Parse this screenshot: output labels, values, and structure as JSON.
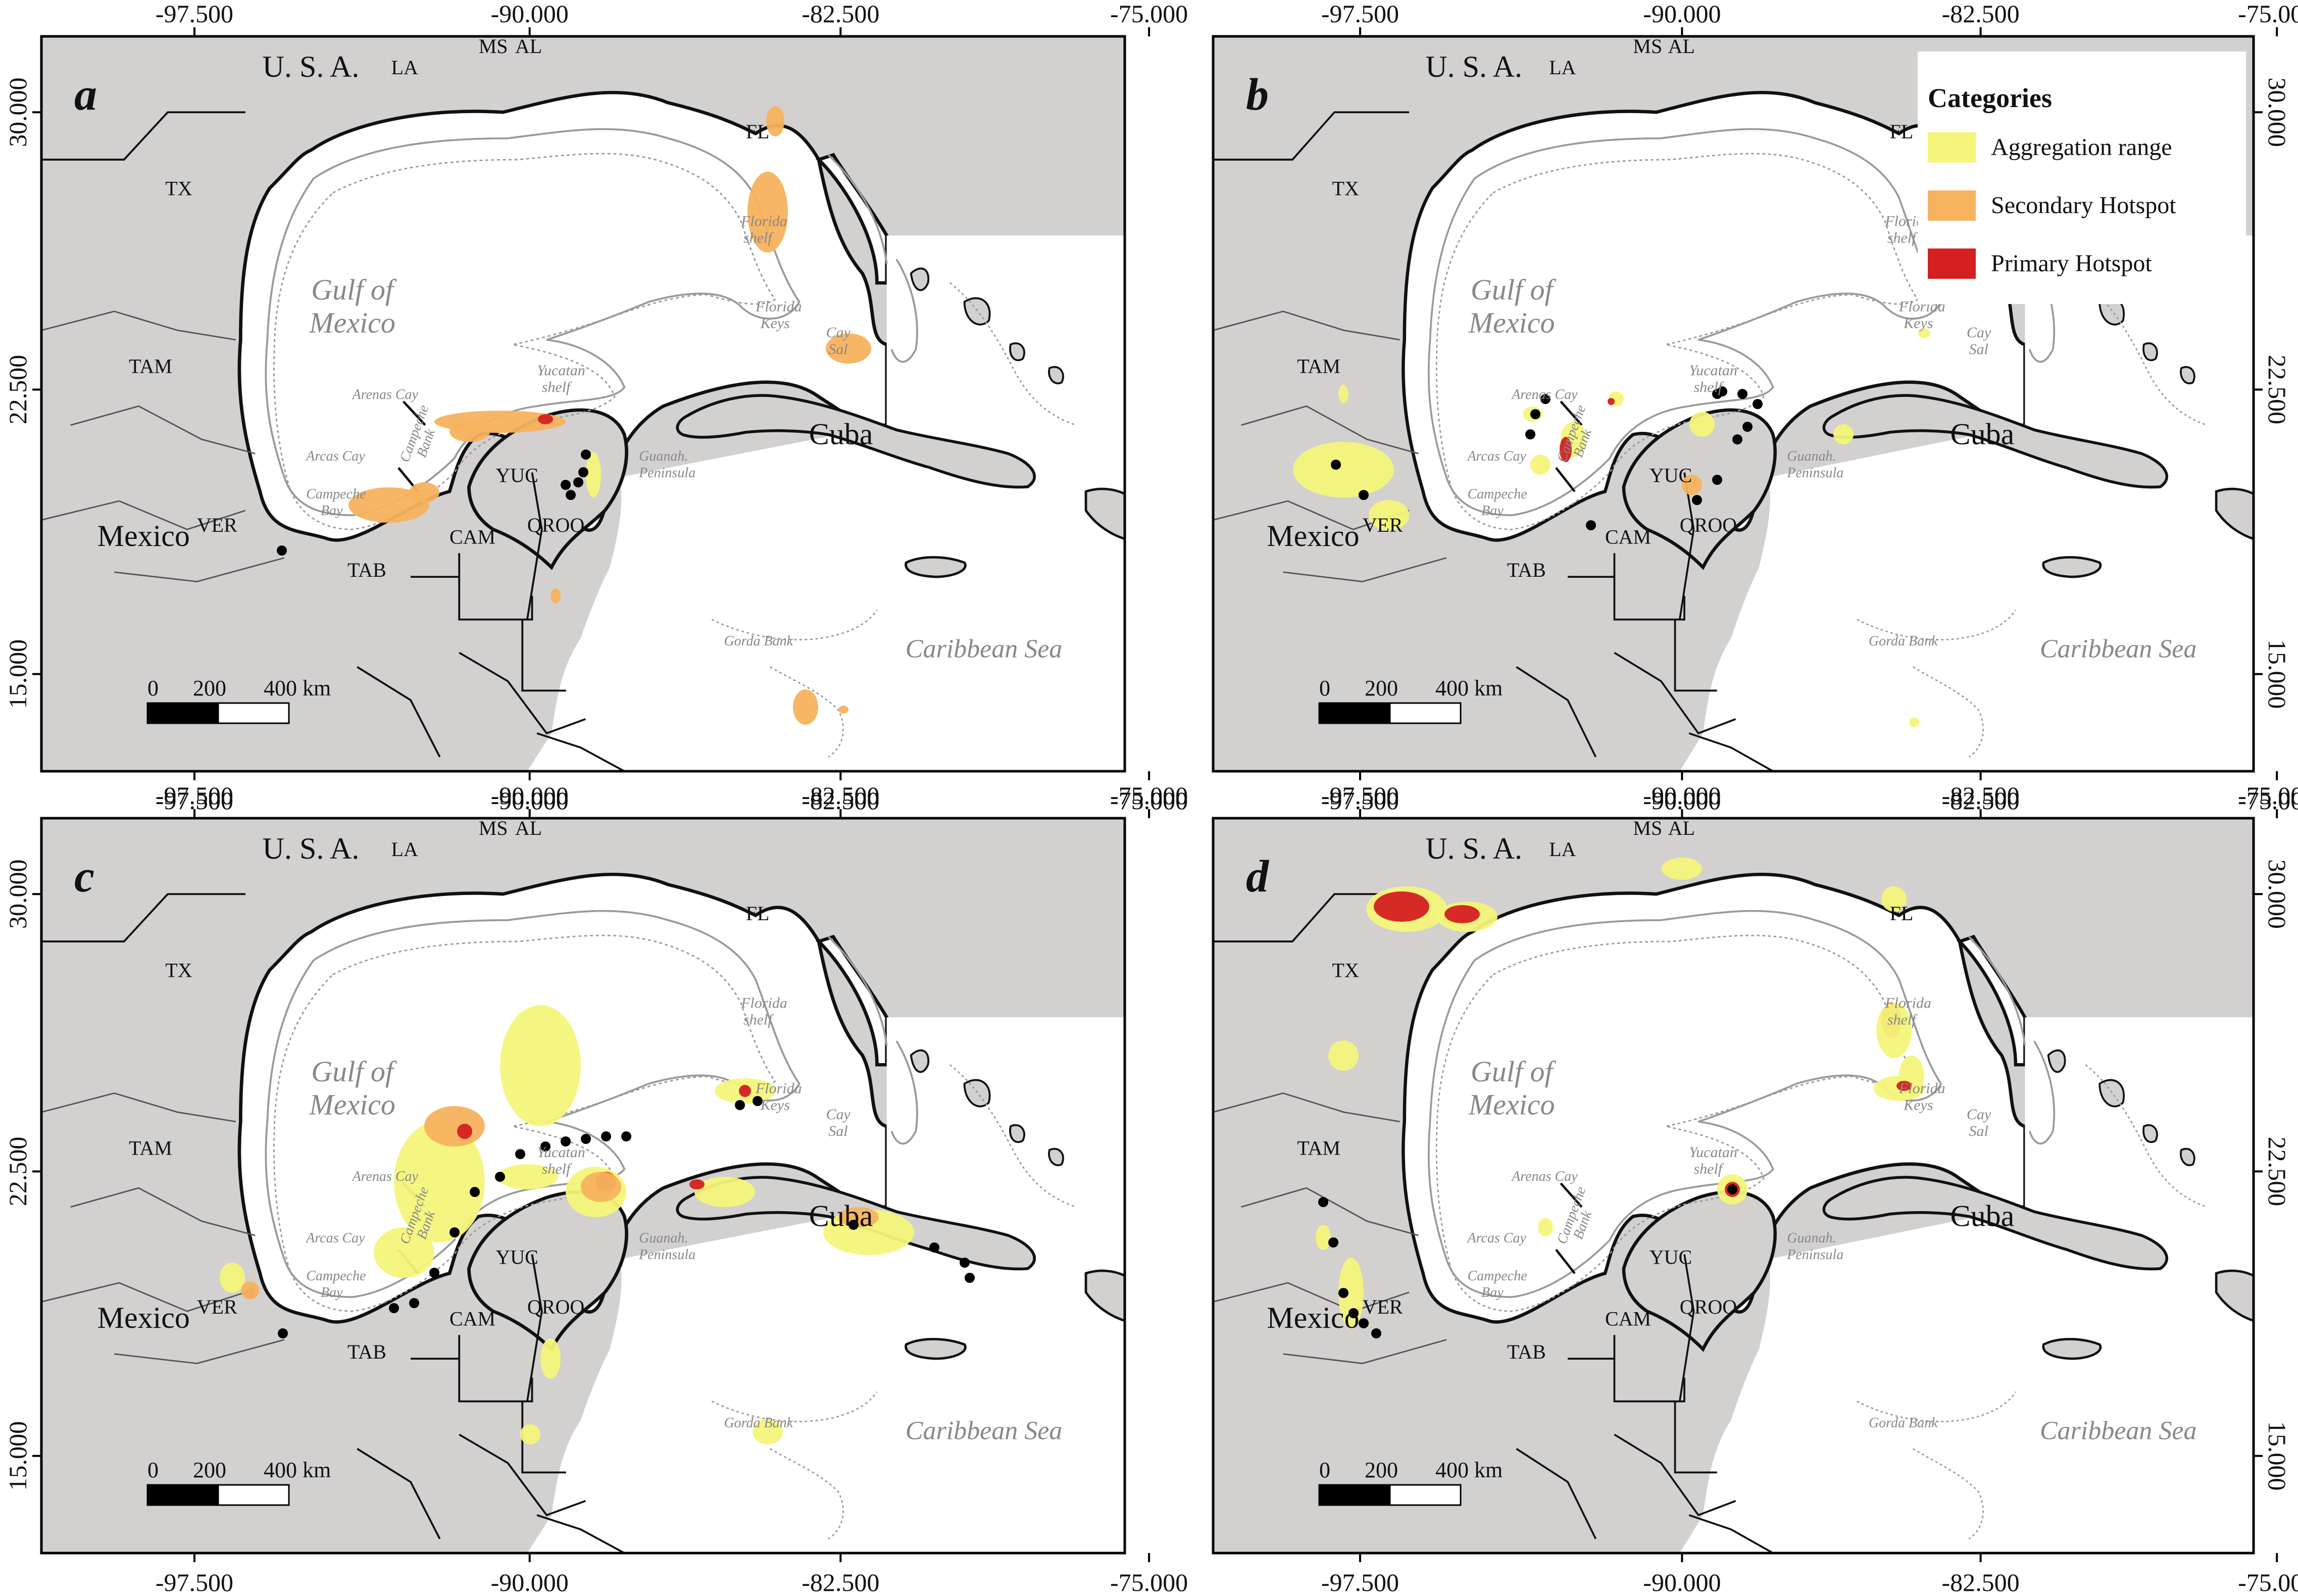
{
  "axes": {
    "lon_ticks": [
      "-97.500",
      "-90.000",
      "-82.500",
      "-75.000"
    ],
    "lat_ticks": [
      "30.000",
      "22.500",
      "15.000"
    ]
  },
  "panels": [
    {
      "letter": "a"
    },
    {
      "letter": "b"
    },
    {
      "letter": "c"
    },
    {
      "letter": "d"
    }
  ],
  "labels": {
    "country_usa": "U. S. A.",
    "country_mexico": "Mexico",
    "country_cuba": "Cuba",
    "state_la": "LA",
    "state_ms": "MS",
    "state_al": "AL",
    "state_fl": "FL",
    "state_tx": "TX",
    "state_tam": "TAM",
    "state_ver": "VER",
    "state_tab": "TAB",
    "state_cam": "CAM",
    "state_yuc": "YUC",
    "state_qroo": "QROO",
    "water_gulf_line1": "Gulf of",
    "water_gulf_line2": "Mexico",
    "water_caribbean": "Caribbean Sea",
    "feature_florida_shelf_1": "Florida",
    "feature_florida_shelf_2": "shelf",
    "feature_florida_keys_1": "Florida",
    "feature_florida_keys_2": "Keys",
    "feature_cay_sal_1": "Cay",
    "feature_cay_sal_2": "Sal",
    "feature_yucatan_shelf_1": "Yucatan",
    "feature_yucatan_shelf_2": "shelf",
    "feature_arenas_cay": "Arenas Cay",
    "feature_arcas_cay": "Arcas Cay",
    "feature_campeche_bank_1": "Campeche",
    "feature_campeche_bank_2": "Bank",
    "feature_campeche_bay_1": "Campeche",
    "feature_campeche_bay_2": "Bay",
    "feature_guanah_1": "Guanah.",
    "feature_guanah_2": "Peninsula",
    "feature_gorda_bank": "Gorda Bank"
  },
  "scale_bar": {
    "t0": "0",
    "t1": "200",
    "t2": "400 km"
  },
  "legend": {
    "title": "Categories",
    "items": [
      {
        "label": "Aggregation range",
        "color": "#f4f57a"
      },
      {
        "label": "Secondary Hotspot",
        "color": "#f7b25e"
      },
      {
        "label": "Primary Hotspot",
        "color": "#d42020"
      }
    ]
  },
  "colors": {
    "land": "#d3d0d0",
    "water": "#ffffff",
    "aggregation": "#f4f57a",
    "secondary": "#f7b25e",
    "primary": "#d42020",
    "coast": "#111111",
    "isobath": "#999999"
  }
}
